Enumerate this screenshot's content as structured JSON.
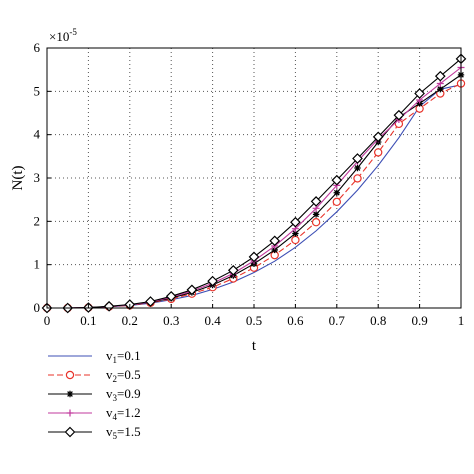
{
  "chart_data": {
    "type": "line",
    "xlabel": "t",
    "ylabel": "N(t)",
    "y_multiplier_base": "×10",
    "y_multiplier_exp": "-5",
    "xlim": [
      0,
      1
    ],
    "ylim": [
      0,
      6
    ],
    "x_ticks": [
      0,
      0.1,
      0.2,
      0.3,
      0.4,
      0.5,
      0.6,
      0.7,
      0.8,
      0.9,
      1
    ],
    "x_tick_labels": [
      "0",
      "0.1",
      "0.2",
      "0.3",
      "0.4",
      "0.5",
      "0.6",
      "0.7",
      "0.8",
      "0.9",
      "1"
    ],
    "y_ticks": [
      0,
      1,
      2,
      3,
      4,
      5,
      6
    ],
    "y_tick_labels": [
      "0",
      "1",
      "2",
      "3",
      "4",
      "5",
      "6"
    ],
    "grid": true,
    "legend_position": "below",
    "x": [
      0,
      0.05,
      0.1,
      0.15,
      0.2,
      0.25,
      0.3,
      0.35,
      0.4,
      0.45,
      0.5,
      0.55,
      0.6,
      0.65,
      0.7,
      0.75,
      0.8,
      0.85,
      0.9,
      0.95,
      1
    ],
    "series": [
      {
        "label_var": "v",
        "label_sub": "1",
        "label_value": "=0.1",
        "color": "#3d4fb5",
        "dash": "",
        "marker": "none",
        "end_value": 5.15,
        "values": [
          0,
          0.0,
          0.01,
          0.03,
          0.06,
          0.11,
          0.19,
          0.29,
          0.43,
          0.6,
          0.82,
          1.08,
          1.4,
          1.78,
          2.22,
          2.72,
          3.29,
          3.93,
          4.65,
          5.05,
          5.15
        ]
      },
      {
        "label_var": "v",
        "label_sub": "2",
        "label_value": "=0.5",
        "color": "#e8332a",
        "dash": "6,3",
        "marker": "circle",
        "end_value": 5.18,
        "values": [
          0,
          0.0,
          0.01,
          0.03,
          0.06,
          0.12,
          0.21,
          0.33,
          0.48,
          0.68,
          0.93,
          1.22,
          1.57,
          1.98,
          2.45,
          2.99,
          3.59,
          4.25,
          4.6,
          4.95,
          5.18
        ]
      },
      {
        "label_var": "v",
        "label_sub": "3",
        "label_value": "=0.9",
        "color": "#000000",
        "dash": "",
        "marker": "star",
        "end_value": 5.38,
        "values": [
          0,
          0.0,
          0.01,
          0.03,
          0.07,
          0.13,
          0.23,
          0.36,
          0.53,
          0.75,
          1.02,
          1.34,
          1.72,
          2.16,
          2.66,
          3.23,
          3.83,
          4.4,
          4.72,
          5.05,
          5.38
        ]
      },
      {
        "label_var": "v",
        "label_sub": "4",
        "label_value": "=1.2",
        "color": "#c0389c",
        "dash": "",
        "marker": "plus",
        "end_value": 5.55,
        "values": [
          0,
          0.0,
          0.01,
          0.03,
          0.07,
          0.14,
          0.25,
          0.39,
          0.57,
          0.8,
          1.09,
          1.43,
          1.83,
          2.3,
          2.83,
          3.38,
          3.9,
          4.35,
          4.8,
          5.18,
          5.55
        ]
      },
      {
        "label_var": "v",
        "label_sub": "5",
        "label_value": "=1.5",
        "color": "#000000",
        "dash": "",
        "marker": "diamond",
        "end_value": 5.75,
        "values": [
          0,
          0.0,
          0.01,
          0.04,
          0.08,
          0.15,
          0.27,
          0.42,
          0.62,
          0.87,
          1.18,
          1.55,
          1.98,
          2.46,
          2.95,
          3.45,
          3.95,
          4.45,
          4.95,
          5.35,
          5.75
        ]
      }
    ]
  }
}
